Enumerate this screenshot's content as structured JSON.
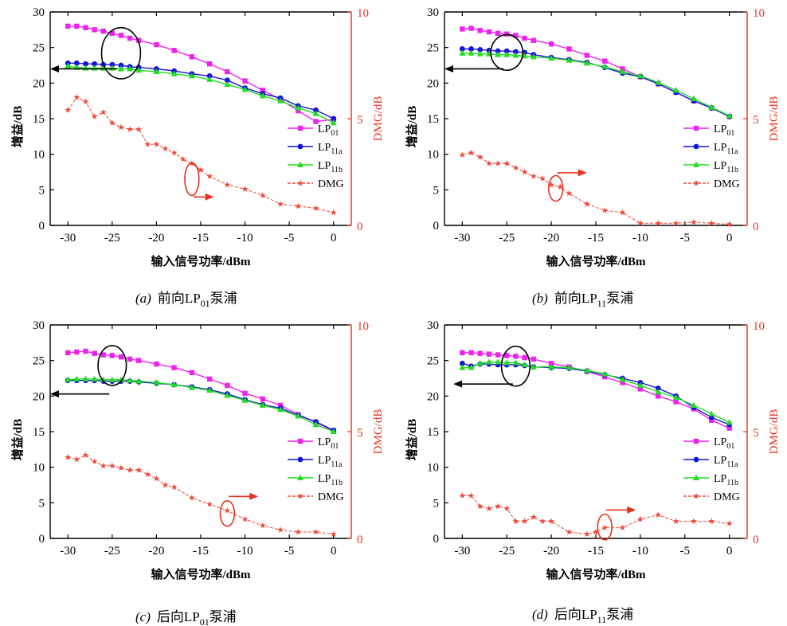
{
  "colors": {
    "lp01": "#ee22ee",
    "lp11a": "#1515d8",
    "lp11b": "#22dd22",
    "dmg": "#ee4a3a",
    "axis": "#000000",
    "right_axis": "#e8311f"
  },
  "chart_data": [
    {
      "type": "line",
      "caption": {
        "prefix": "(a)",
        "text": "前向LP",
        "sub": "01",
        "suffix": "泵浦"
      },
      "xlabel": "输入信号功率/dBm",
      "ylabel": "增益/dB",
      "y2label": "DMG/dB",
      "xlim": [
        -32,
        2
      ],
      "ylim": [
        0,
        30
      ],
      "y2lim": [
        0,
        10
      ],
      "xticks": [
        -30,
        -25,
        -20,
        -15,
        -10,
        -5,
        0
      ],
      "yticks": [
        0,
        5,
        10,
        15,
        20,
        25,
        30
      ],
      "y2ticks": [
        0,
        5,
        10
      ],
      "x": [
        -30,
        -29,
        -28,
        -27,
        -26,
        -25,
        -24,
        -23,
        -22,
        -20,
        -18,
        -16,
        -14,
        -12,
        -10,
        -8,
        -6,
        -4,
        -2,
        0
      ],
      "x_dmg": [
        -30,
        -29,
        -28,
        -27,
        -26,
        -25,
        -24,
        -23,
        -22,
        -21,
        -20,
        -19,
        -18,
        -17,
        -16,
        -15,
        -14,
        -12,
        -10,
        -8,
        -6,
        -4,
        -2,
        0
      ],
      "series": [
        {
          "name": "LP",
          "sub": "01",
          "marker": "square",
          "values": [
            28,
            28,
            27.8,
            27.5,
            27.3,
            27,
            26.7,
            26.3,
            26,
            25.4,
            24.6,
            23.7,
            22.7,
            21.6,
            20.3,
            19,
            17.7,
            16.1,
            14.6,
            14.9
          ]
        },
        {
          "name": "LP",
          "sub": "11a",
          "marker": "circle",
          "values": [
            22.8,
            22.8,
            22.7,
            22.7,
            22.6,
            22.6,
            22.5,
            22.3,
            22.2,
            22,
            21.7,
            21.3,
            21,
            20.4,
            19.3,
            18.5,
            17.9,
            16.8,
            16.2,
            15
          ]
        },
        {
          "name": "LP",
          "sub": "11b",
          "marker": "triangle",
          "values": [
            22.4,
            22.2,
            22.1,
            22.1,
            22.1,
            22.1,
            22,
            22,
            21.8,
            21.6,
            21.3,
            21,
            20.5,
            19.8,
            19.1,
            18.2,
            17.5,
            16.5,
            15.7,
            14.4
          ]
        }
      ],
      "dmg": {
        "name": "DMG",
        "marker": "star",
        "values": [
          5.4,
          6,
          5.8,
          5.1,
          5.3,
          4.8,
          4.6,
          4.5,
          4.5,
          3.8,
          3.8,
          3.6,
          3.4,
          3.1,
          2.9,
          2.6,
          2.3,
          1.9,
          1.7,
          1.4,
          1.0,
          0.9,
          0.8,
          0.6
        ]
      },
      "annotations": [
        {
          "type": "ellipse",
          "x": -24,
          "y": 24.2,
          "rx": 2.2,
          "ry": 3.6,
          "color": "#000000",
          "arrow_to": -32,
          "arrow_y": 22
        },
        {
          "type": "ellipse",
          "x": -16,
          "y": 6.5,
          "rx": 0.8,
          "ry": 2.3,
          "color": "#e8311f",
          "arrow_to": -13.5,
          "arrow_y": 4
        }
      ]
    },
    {
      "type": "line",
      "caption": {
        "prefix": "(b)",
        "text": "前向LP",
        "sub": "11",
        "suffix": "泵浦"
      },
      "xlabel": "输入信号功率/dBm",
      "ylabel": "增益/dB",
      "y2label": "DMG/dB",
      "xlim": [
        -32,
        2
      ],
      "ylim": [
        0,
        30
      ],
      "y2lim": [
        0,
        10
      ],
      "xticks": [
        -30,
        -25,
        -20,
        -15,
        -10,
        -5,
        0
      ],
      "yticks": [
        0,
        5,
        10,
        15,
        20,
        25,
        30
      ],
      "y2ticks": [
        0,
        5,
        10
      ],
      "x": [
        -30,
        -29,
        -28,
        -27,
        -26,
        -25,
        -24,
        -23,
        -22,
        -20,
        -18,
        -16,
        -14,
        -12,
        -10,
        -8,
        -6,
        -4,
        -2,
        0
      ],
      "x_dmg": [
        -30,
        -29,
        -28,
        -27,
        -26,
        -25,
        -24,
        -23,
        -22,
        -21,
        -20,
        -19,
        -18,
        -16,
        -14,
        -12,
        -10,
        -8,
        -6,
        -4,
        -2,
        0
      ],
      "series": [
        {
          "name": "LP",
          "sub": "01",
          "marker": "square",
          "values": [
            27.6,
            27.7,
            27.4,
            27.2,
            27,
            26.9,
            26.7,
            26.3,
            26,
            25.5,
            24.8,
            23.9,
            23.1,
            22,
            20.9,
            19.9,
            18.7,
            17.5,
            16.5,
            15.3
          ]
        },
        {
          "name": "LP",
          "sub": "11a",
          "marker": "circle",
          "values": [
            24.8,
            24.8,
            24.7,
            24.6,
            24.5,
            24.5,
            24.4,
            24.3,
            24,
            23.6,
            23.3,
            22.9,
            22.2,
            21.4,
            20.9,
            19.9,
            18.7,
            17.5,
            16.5,
            15.3
          ]
        },
        {
          "name": "LP",
          "sub": "11b",
          "marker": "triangle",
          "values": [
            24.2,
            24.2,
            24.1,
            24.1,
            24,
            24,
            23.9,
            23.8,
            23.7,
            23.5,
            23.2,
            22.8,
            22.3,
            21.6,
            21,
            20.1,
            19,
            17.8,
            16.6,
            15.4
          ]
        }
      ],
      "dmg": {
        "name": "DMG",
        "marker": "star",
        "values": [
          3.3,
          3.4,
          3.2,
          2.9,
          2.9,
          2.9,
          2.7,
          2.5,
          2.3,
          2.2,
          1.9,
          1.8,
          1.5,
          1,
          0.7,
          0.6,
          0.1,
          0.1,
          0.1,
          0.15,
          0.1,
          0.05
        ]
      },
      "annotations": [
        {
          "type": "ellipse",
          "x": -25,
          "y": 24.3,
          "rx": 1.8,
          "ry": 2.5,
          "color": "#000000",
          "arrow_to": -32,
          "arrow_y": 22
        },
        {
          "type": "ellipse",
          "x": -19.5,
          "y": 5.2,
          "rx": 0.8,
          "ry": 1.8,
          "color": "#e8311f",
          "arrow_to": -16,
          "arrow_y": 7.4
        }
      ]
    },
    {
      "type": "line",
      "caption": {
        "prefix": "(c)",
        "text": "后向LP",
        "sub": "01",
        "suffix": "泵浦"
      },
      "xlabel": "输入信号功率/dBm",
      "ylabel": "增益/dB",
      "y2label": "DMG/dB",
      "xlim": [
        -32,
        2
      ],
      "ylim": [
        0,
        30
      ],
      "y2lim": [
        0,
        10
      ],
      "xticks": [
        -30,
        -25,
        -20,
        -15,
        -10,
        -5,
        0
      ],
      "yticks": [
        0,
        5,
        10,
        15,
        20,
        25,
        30
      ],
      "y2ticks": [
        0,
        5,
        10
      ],
      "x": [
        -30,
        -29,
        -28,
        -27,
        -26,
        -25,
        -24,
        -23,
        -22,
        -20,
        -18,
        -16,
        -14,
        -12,
        -10,
        -8,
        -6,
        -4,
        -2,
        0
      ],
      "x_dmg": [
        -30,
        -29,
        -28,
        -27,
        -26,
        -25,
        -24,
        -23,
        -22,
        -21,
        -20,
        -19,
        -18,
        -16,
        -14,
        -12,
        -10,
        -8,
        -6,
        -4,
        -2,
        0
      ],
      "series": [
        {
          "name": "LP",
          "sub": "01",
          "marker": "square",
          "values": [
            26.1,
            26.2,
            26.3,
            26,
            25.8,
            25.7,
            25.5,
            25.2,
            25,
            24.5,
            24,
            23.3,
            22.4,
            21.5,
            20.4,
            19.6,
            18.7,
            17.4,
            16.3,
            15.1
          ]
        },
        {
          "name": "LP",
          "sub": "11a",
          "marker": "circle",
          "values": [
            22.2,
            22.2,
            22.2,
            22.2,
            22.1,
            22.1,
            22.1,
            22.1,
            22,
            21.8,
            21.6,
            21.3,
            20.9,
            20.3,
            19.5,
            18.8,
            18.3,
            17.3,
            16.4,
            15.2
          ]
        },
        {
          "name": "LP",
          "sub": "11b",
          "marker": "triangle",
          "values": [
            22.3,
            22.4,
            22.4,
            22.4,
            22.3,
            22.3,
            22.3,
            22.2,
            22.1,
            21.9,
            21.6,
            21.2,
            20.8,
            20.1,
            19.4,
            18.7,
            18.1,
            17.2,
            16,
            15
          ]
        }
      ],
      "dmg": {
        "name": "DMG",
        "marker": "star",
        "values": [
          3.8,
          3.7,
          3.9,
          3.6,
          3.4,
          3.4,
          3.3,
          3.2,
          3.2,
          3,
          2.8,
          2.5,
          2.4,
          1.9,
          1.6,
          1.3,
          0.9,
          0.6,
          0.4,
          0.3,
          0.3,
          0.2
        ]
      },
      "annotations": [
        {
          "type": "ellipse",
          "x": -25,
          "y": 24.3,
          "rx": 1.6,
          "ry": 2.8,
          "color": "#000000",
          "arrow_to": -32,
          "arrow_y": 20.3
        },
        {
          "type": "ellipse",
          "x": -12,
          "y": 3.5,
          "rx": 0.8,
          "ry": 1.8,
          "color": "#e8311f",
          "arrow_to": -8.5,
          "arrow_y": 5.9
        }
      ]
    },
    {
      "type": "line",
      "caption": {
        "prefix": "(d)",
        "text": "后向LP",
        "sub": "11",
        "suffix": "泵浦"
      },
      "xlabel": "输入信号功率/dBm",
      "ylabel": "增益/dB",
      "y2label": "DMG/dB",
      "xlim": [
        -32,
        2
      ],
      "ylim": [
        0,
        30
      ],
      "y2lim": [
        0,
        10
      ],
      "xticks": [
        -30,
        -25,
        -20,
        -15,
        -10,
        -5,
        0
      ],
      "yticks": [
        0,
        5,
        10,
        15,
        20,
        25,
        30
      ],
      "y2ticks": [
        0,
        5,
        10
      ],
      "x": [
        -30,
        -29,
        -28,
        -27,
        -26,
        -25,
        -24,
        -23,
        -22,
        -20,
        -18,
        -16,
        -14,
        -12,
        -10,
        -8,
        -6,
        -4,
        -2,
        0
      ],
      "x_dmg": [
        -30,
        -29,
        -28,
        -27,
        -26,
        -25,
        -24,
        -23,
        -22,
        -21,
        -20,
        -18,
        -16,
        -15,
        -14,
        -12,
        -10,
        -8,
        -6,
        -4,
        -2,
        0
      ],
      "series": [
        {
          "name": "LP",
          "sub": "01",
          "marker": "square",
          "values": [
            26.1,
            26.1,
            26,
            25.9,
            25.8,
            25.7,
            25.6,
            25.4,
            25.2,
            24.6,
            24.1,
            23.5,
            22.7,
            21.9,
            21,
            20,
            19.2,
            18.2,
            16.6,
            15.5
          ]
        },
        {
          "name": "LP",
          "sub": "11a",
          "marker": "circle",
          "values": [
            24.6,
            24.2,
            24.5,
            24.5,
            24.4,
            24.4,
            24.4,
            24.3,
            24.1,
            24,
            23.9,
            23.5,
            23,
            22.5,
            21.9,
            21.1,
            20,
            18.4,
            17,
            16
          ]
        },
        {
          "name": "LP",
          "sub": "11b",
          "marker": "triangle",
          "values": [
            24,
            24,
            24.6,
            24.8,
            24.8,
            24.7,
            24.7,
            24.4,
            24.1,
            24.1,
            24,
            23.6,
            23.1,
            22.3,
            21.5,
            20.6,
            19.8,
            18.7,
            17.5,
            16.3
          ]
        }
      ],
      "dmg": {
        "name": "DMG",
        "marker": "star",
        "values": [
          2,
          2,
          1.5,
          1.4,
          1.5,
          1.4,
          0.8,
          0.8,
          1,
          0.8,
          0.8,
          0.3,
          0.2,
          0.3,
          0.5,
          0.5,
          0.9,
          1.1,
          0.8,
          0.8,
          0.8,
          0.7
        ]
      },
      "annotations": [
        {
          "type": "ellipse",
          "x": -24,
          "y": 24.2,
          "rx": 1.6,
          "ry": 2.8,
          "color": "#000000",
          "arrow_to": -31,
          "arrow_y": 21.7
        },
        {
          "type": "ellipse",
          "x": -14,
          "y": 1.6,
          "rx": 0.8,
          "ry": 1.8,
          "color": "#e8311f",
          "arrow_to": -10.5,
          "arrow_y": 4
        }
      ]
    }
  ]
}
